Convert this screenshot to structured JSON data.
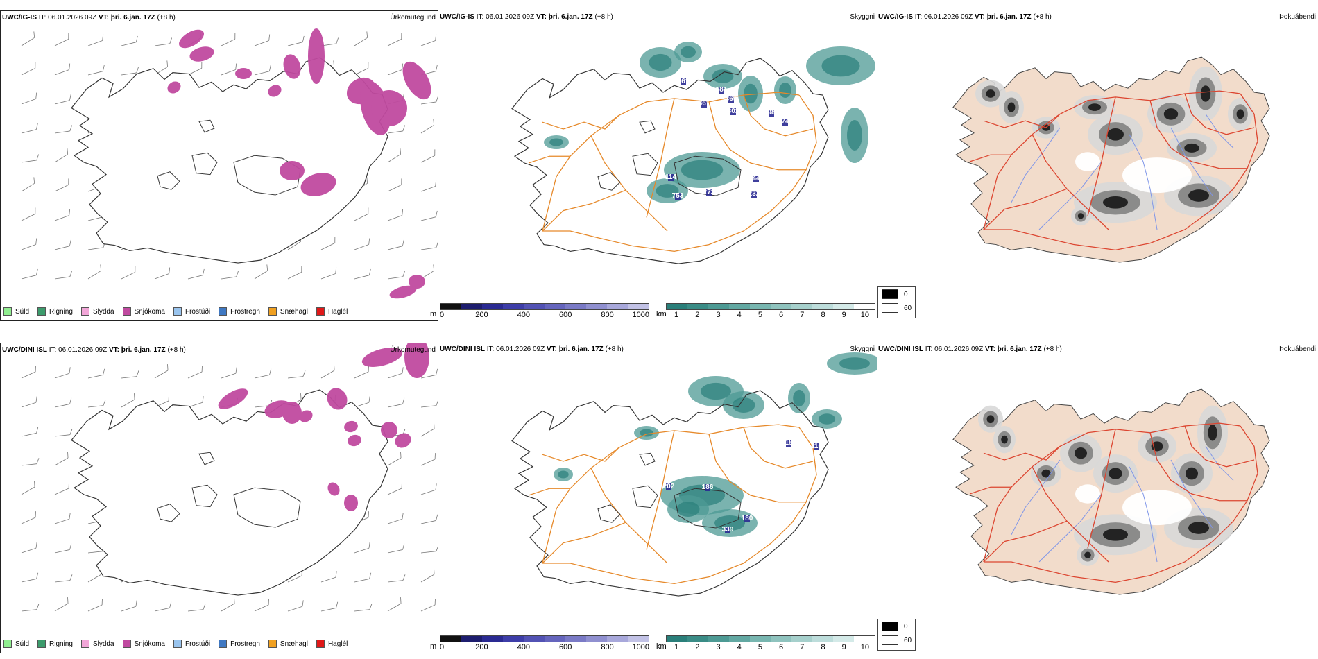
{
  "rows": [
    {
      "model": "UWC/IG-IS",
      "it_label": "IT:",
      "it_value": "06.01.2026 09Z",
      "vt_label": "VT:",
      "vt_value": "þri. 6.jan. 17Z",
      "lead": "(+8 h)"
    },
    {
      "model": "UWC/DINI ISL",
      "it_label": "IT:",
      "it_value": "06.01.2026 09Z",
      "vt_label": "VT:",
      "vt_value": "þri. 6.jan. 17Z",
      "lead": "(+8 h)"
    }
  ],
  "panel_types": {
    "precip": "Úrkomutegund",
    "visibility": "Skyggni",
    "fog": "Þokuábendi"
  },
  "precip_legend": [
    {
      "label": "Súld",
      "color": "#90ee90"
    },
    {
      "label": "Rigning",
      "color": "#3c9b6c"
    },
    {
      "label": "Slydda",
      "color": "#f2a6d8"
    },
    {
      "label": "Snjókoma",
      "color": "#c04aa0"
    },
    {
      "label": "Frostúði",
      "color": "#99c4ee"
    },
    {
      "label": "Frostregn",
      "color": "#3f78c2"
    },
    {
      "label": "Snæhagl",
      "color": "#f0a020"
    },
    {
      "label": "Haglél",
      "color": "#e01818"
    }
  ],
  "cloud_base_scale": {
    "unit": "m",
    "ticks": [
      "0",
      "200",
      "400",
      "600",
      "800",
      "1000"
    ],
    "colors": [
      "#111111",
      "#1d1d6e",
      "#2a2a92",
      "#3d3da8",
      "#5252b4",
      "#6565bd",
      "#7a7ac6",
      "#9090d0",
      "#a8a8db",
      "#c2c2e6"
    ]
  },
  "visibility_scale": {
    "unit": "km",
    "ticks": [
      "1",
      "2",
      "3",
      "4",
      "5",
      "6",
      "7",
      "8",
      "9",
      "10"
    ],
    "colors": [
      "#2a7f7a",
      "#3a8c86",
      "#4d9a94",
      "#62a8a2",
      "#78b6b0",
      "#8fc3be",
      "#a6d0cc",
      "#bddddb",
      "#d4eae8",
      "#ffffff"
    ]
  },
  "fog_legend": [
    {
      "label": "0",
      "color": "#000000"
    },
    {
      "label": "60",
      "color": "#ffffff"
    }
  ],
  "visibility_labels_row1": [
    "461",
    "181",
    "861",
    "369",
    "301",
    "98",
    "74",
    "114",
    "44",
    "273",
    "232",
    "753"
  ],
  "visibility_labels_row2": [
    "15",
    "116",
    "202",
    "186",
    "180",
    "339"
  ]
}
